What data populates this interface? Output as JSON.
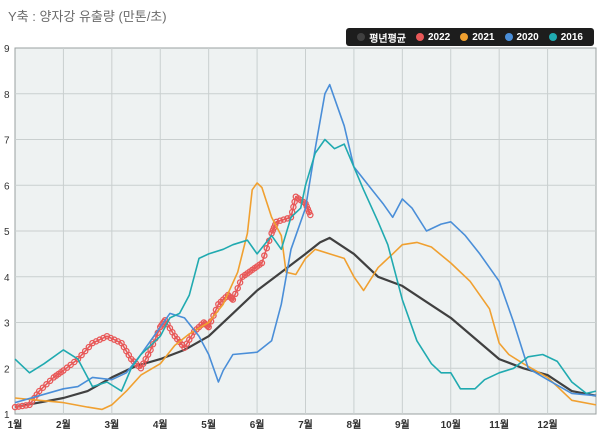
{
  "chart_data": {
    "type": "line",
    "title": "Y축 : 양자강 유출량 (만톤/초)",
    "ylim": [
      1,
      9
    ],
    "yticks": [
      "1",
      "2",
      "3",
      "4",
      "5",
      "6",
      "7",
      "8",
      "9"
    ],
    "categories": [
      "1월",
      "2월",
      "3월",
      "4월",
      "5월",
      "6월",
      "7월",
      "8월",
      "9월",
      "10월",
      "11월",
      "12월"
    ],
    "grid": true,
    "legend_position": "top-right",
    "series": [
      {
        "name": "평년평균",
        "color": "#404040",
        "marker": "none",
        "points": [
          [
            1,
            1.15
          ],
          [
            1.5,
            1.25
          ],
          [
            2,
            1.35
          ],
          [
            2.5,
            1.5
          ],
          [
            3,
            1.8
          ],
          [
            3.5,
            2.05
          ],
          [
            4,
            2.2
          ],
          [
            4.5,
            2.4
          ],
          [
            5,
            2.7
          ],
          [
            5.5,
            3.2
          ],
          [
            6,
            3.7
          ],
          [
            6.5,
            4.1
          ],
          [
            7,
            4.5
          ],
          [
            7.3,
            4.75
          ],
          [
            7.5,
            4.85
          ],
          [
            8,
            4.5
          ],
          [
            8.5,
            4.0
          ],
          [
            9,
            3.8
          ],
          [
            9.5,
            3.45
          ],
          [
            10,
            3.1
          ],
          [
            10.5,
            2.65
          ],
          [
            11,
            2.2
          ],
          [
            11.5,
            2.0
          ],
          [
            12,
            1.85
          ],
          [
            12.5,
            1.5
          ],
          [
            13,
            1.4
          ]
        ]
      },
      {
        "name": "2022",
        "color": "#e85858",
        "marker": "circle",
        "points": [
          [
            1,
            1.15
          ],
          [
            1.3,
            1.2
          ],
          [
            1.5,
            1.5
          ],
          [
            1.8,
            1.8
          ],
          [
            2,
            1.95
          ],
          [
            2.3,
            2.2
          ],
          [
            2.6,
            2.55
          ],
          [
            2.9,
            2.7
          ],
          [
            3.2,
            2.55
          ],
          [
            3.4,
            2.2
          ],
          [
            3.6,
            2.0
          ],
          [
            3.8,
            2.4
          ],
          [
            4,
            2.9
          ],
          [
            4.1,
            3.05
          ],
          [
            4.3,
            2.7
          ],
          [
            4.5,
            2.45
          ],
          [
            4.7,
            2.8
          ],
          [
            4.9,
            3.0
          ],
          [
            5,
            2.9
          ],
          [
            5.2,
            3.4
          ],
          [
            5.4,
            3.6
          ],
          [
            5.5,
            3.5
          ],
          [
            5.7,
            4.0
          ],
          [
            5.9,
            4.15
          ],
          [
            6.1,
            4.3
          ],
          [
            6.3,
            4.95
          ],
          [
            6.4,
            5.2
          ],
          [
            6.7,
            5.3
          ],
          [
            6.8,
            5.75
          ],
          [
            7,
            5.6
          ],
          [
            7.1,
            5.35
          ]
        ]
      },
      {
        "name": "2021",
        "color": "#f0a030",
        "marker": "none",
        "points": [
          [
            1,
            1.35
          ],
          [
            1.5,
            1.3
          ],
          [
            2,
            1.25
          ],
          [
            2.5,
            1.15
          ],
          [
            2.8,
            1.1
          ],
          [
            3,
            1.2
          ],
          [
            3.3,
            1.5
          ],
          [
            3.6,
            1.85
          ],
          [
            4,
            2.1
          ],
          [
            4.3,
            2.5
          ],
          [
            4.6,
            2.75
          ],
          [
            5,
            3.0
          ],
          [
            5.3,
            3.4
          ],
          [
            5.6,
            4.1
          ],
          [
            5.8,
            4.95
          ],
          [
            5.9,
            5.9
          ],
          [
            6,
            6.05
          ],
          [
            6.1,
            5.95
          ],
          [
            6.3,
            5.3
          ],
          [
            6.5,
            4.9
          ],
          [
            6.6,
            4.1
          ],
          [
            6.8,
            4.05
          ],
          [
            7,
            4.4
          ],
          [
            7.2,
            4.6
          ],
          [
            7.5,
            4.5
          ],
          [
            7.8,
            4.4
          ],
          [
            8,
            4.0
          ],
          [
            8.2,
            3.7
          ],
          [
            8.5,
            4.2
          ],
          [
            8.8,
            4.5
          ],
          [
            9,
            4.7
          ],
          [
            9.3,
            4.75
          ],
          [
            9.6,
            4.65
          ],
          [
            10,
            4.3
          ],
          [
            10.4,
            3.9
          ],
          [
            10.8,
            3.3
          ],
          [
            11,
            2.55
          ],
          [
            11.2,
            2.3
          ],
          [
            11.5,
            2.1
          ],
          [
            12,
            1.8
          ],
          [
            12.5,
            1.3
          ],
          [
            13,
            1.2
          ]
        ]
      },
      {
        "name": "2020",
        "color": "#4a8ed8",
        "marker": "none",
        "points": [
          [
            1,
            1.25
          ],
          [
            1.5,
            1.4
          ],
          [
            2,
            1.55
          ],
          [
            2.3,
            1.6
          ],
          [
            2.6,
            1.8
          ],
          [
            3,
            1.75
          ],
          [
            3.3,
            1.9
          ],
          [
            3.6,
            2.3
          ],
          [
            4,
            2.9
          ],
          [
            4.2,
            3.2
          ],
          [
            4.5,
            3.1
          ],
          [
            4.8,
            2.7
          ],
          [
            5,
            2.3
          ],
          [
            5.2,
            1.7
          ],
          [
            5.3,
            1.95
          ],
          [
            5.5,
            2.3
          ],
          [
            6,
            2.35
          ],
          [
            6.3,
            2.6
          ],
          [
            6.5,
            3.4
          ],
          [
            6.7,
            4.6
          ],
          [
            7,
            5.5
          ],
          [
            7.2,
            6.8
          ],
          [
            7.4,
            8.0
          ],
          [
            7.5,
            8.2
          ],
          [
            7.6,
            7.9
          ],
          [
            7.8,
            7.3
          ],
          [
            8,
            6.4
          ],
          [
            8.3,
            6.0
          ],
          [
            8.6,
            5.6
          ],
          [
            8.8,
            5.3
          ],
          [
            9,
            5.7
          ],
          [
            9.2,
            5.5
          ],
          [
            9.5,
            5.0
          ],
          [
            9.8,
            5.15
          ],
          [
            10,
            5.2
          ],
          [
            10.3,
            4.9
          ],
          [
            10.6,
            4.5
          ],
          [
            11,
            3.9
          ],
          [
            11.3,
            3.0
          ],
          [
            11.6,
            2.0
          ],
          [
            12,
            1.75
          ],
          [
            12.5,
            1.45
          ],
          [
            13,
            1.4
          ]
        ]
      },
      {
        "name": "2016",
        "color": "#20aab0",
        "marker": "none",
        "points": [
          [
            1,
            2.2
          ],
          [
            1.3,
            1.9
          ],
          [
            1.6,
            2.1
          ],
          [
            2,
            2.4
          ],
          [
            2.3,
            2.2
          ],
          [
            2.6,
            1.6
          ],
          [
            2.9,
            1.7
          ],
          [
            3.2,
            1.5
          ],
          [
            3.4,
            2.0
          ],
          [
            3.6,
            2.3
          ],
          [
            3.8,
            2.5
          ],
          [
            4,
            2.7
          ],
          [
            4.2,
            3.1
          ],
          [
            4.4,
            3.2
          ],
          [
            4.6,
            3.6
          ],
          [
            4.8,
            4.4
          ],
          [
            5,
            4.5
          ],
          [
            5.3,
            4.6
          ],
          [
            5.5,
            4.7
          ],
          [
            5.8,
            4.8
          ],
          [
            6,
            4.5
          ],
          [
            6.3,
            4.9
          ],
          [
            6.5,
            4.6
          ],
          [
            6.7,
            5.3
          ],
          [
            6.9,
            5.5
          ],
          [
            7,
            6.0
          ],
          [
            7.2,
            6.7
          ],
          [
            7.4,
            7.0
          ],
          [
            7.6,
            6.8
          ],
          [
            7.8,
            6.9
          ],
          [
            8,
            6.4
          ],
          [
            8.2,
            5.9
          ],
          [
            8.5,
            5.2
          ],
          [
            8.7,
            4.7
          ],
          [
            9,
            3.5
          ],
          [
            9.3,
            2.6
          ],
          [
            9.6,
            2.1
          ],
          [
            9.8,
            1.9
          ],
          [
            10,
            1.9
          ],
          [
            10.2,
            1.55
          ],
          [
            10.5,
            1.55
          ],
          [
            10.7,
            1.75
          ],
          [
            11,
            1.9
          ],
          [
            11.3,
            2.0
          ],
          [
            11.6,
            2.25
          ],
          [
            11.9,
            2.3
          ],
          [
            12.2,
            2.15
          ],
          [
            12.5,
            1.7
          ],
          [
            12.8,
            1.45
          ],
          [
            13,
            1.5
          ]
        ]
      }
    ]
  }
}
